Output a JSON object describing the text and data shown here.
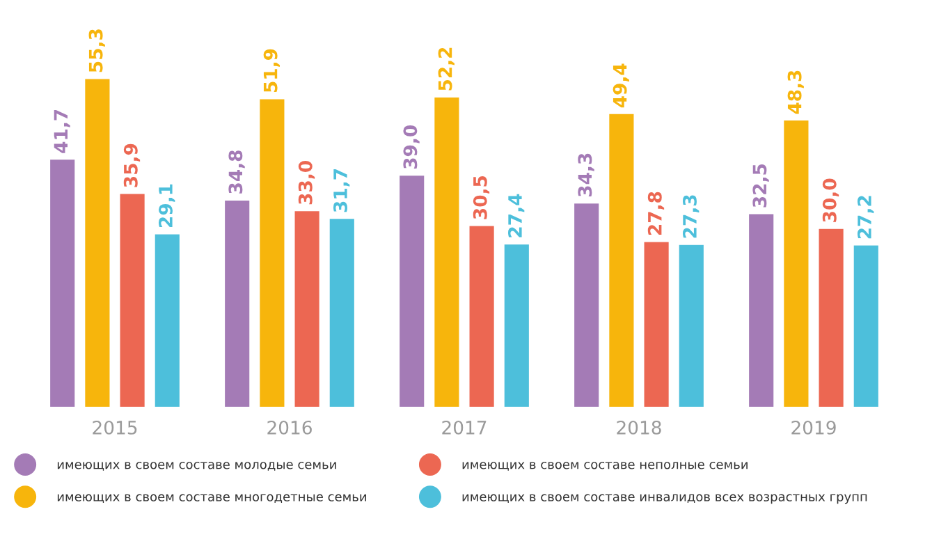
{
  "chart_data": {
    "type": "bar",
    "categories": [
      "2015",
      "2016",
      "2017",
      "2018",
      "2019"
    ],
    "series": [
      {
        "name": "имеющих в своем составе молодые семьи",
        "color": "#a47bb6",
        "values": [
          41.7,
          34.8,
          39.0,
          34.3,
          32.5
        ],
        "value_labels": [
          "41,7",
          "34,8",
          "39,0",
          "34,3",
          "32,5"
        ]
      },
      {
        "name": "имеющих в своем составе многодетные семьи",
        "color": "#f7b50c",
        "values": [
          55.3,
          51.9,
          52.2,
          49.4,
          48.3
        ],
        "value_labels": [
          "55,3",
          "51,9",
          "52,2",
          "49,4",
          "48,3"
        ]
      },
      {
        "name": "имеющих в своем составе неполные семьи",
        "color": "#ec6752",
        "values": [
          35.9,
          33.0,
          30.5,
          27.8,
          30.0
        ],
        "value_labels": [
          "35,9",
          "33,0",
          "30,5",
          "27,8",
          "30,0"
        ]
      },
      {
        "name": "имеющих в своем составе инвалидов всех возрастных групп",
        "color": "#4dbfdb",
        "values": [
          29.1,
          31.7,
          27.4,
          27.3,
          27.2
        ],
        "value_labels": [
          "29,1",
          "31,7",
          "27,4",
          "27,3",
          "27,2"
        ]
      }
    ],
    "legend": "bottom",
    "grid": false,
    "marker": "circle"
  }
}
